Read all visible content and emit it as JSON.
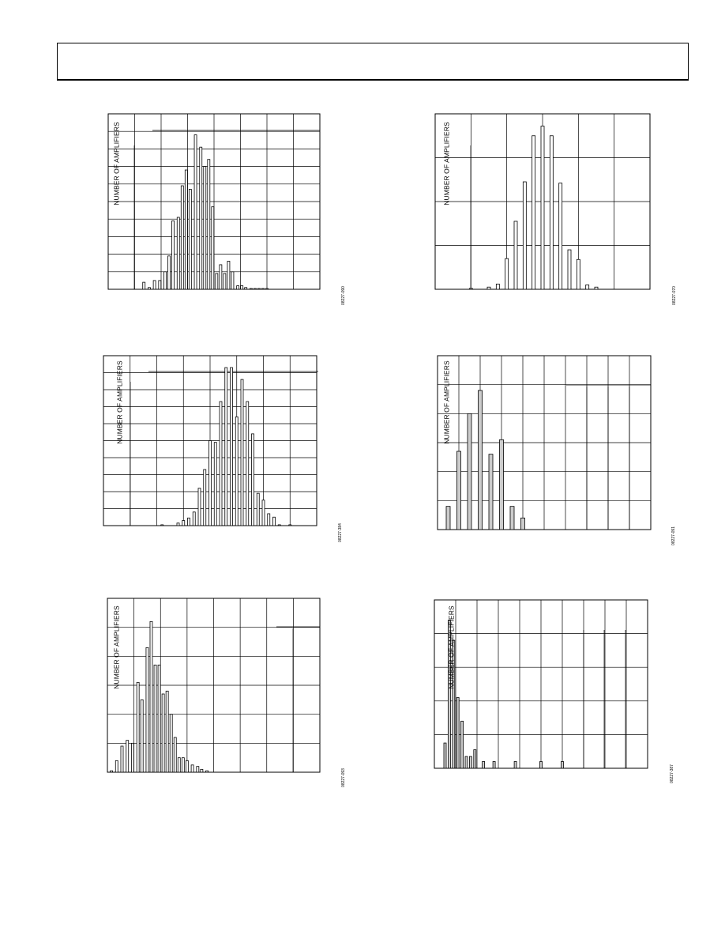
{
  "header": {
    "text": ""
  },
  "charts": [
    {
      "ylabel": "NUMBER OF AMPLIFIERS",
      "fig_id": "08227-090"
    },
    {
      "ylabel": "NUMBER OF AMPLIFIERS",
      "fig_id": "08227-070"
    },
    {
      "ylabel": "NUMBER OF AMPLIFIERS",
      "fig_id": "08227-384"
    },
    {
      "ylabel": "NUMBER OF AMPLIFIERS",
      "fig_id": "08227-091"
    },
    {
      "ylabel": "NUMBER OF AMPLIFIERS",
      "fig_id": "08227-093"
    },
    {
      "ylabel": "NUMBER OF AMPLIFIERS",
      "fig_id": "08227-387"
    }
  ],
  "chart_data": [
    {
      "type": "bar",
      "ylabel": "NUMBER OF AMPLIFIERS",
      "xlim": [
        0,
        8
      ],
      "ylim": [
        0,
        10
      ],
      "grid": {
        "x_divisions": 8,
        "y_divisions": 10
      },
      "bar_color": "#ffffff",
      "x": [
        1.35,
        1.55,
        1.75,
        1.95,
        2.15,
        2.3,
        2.45,
        2.65,
        2.8,
        2.95,
        3.1,
        3.3,
        3.5,
        3.65,
        3.8,
        3.95,
        4.1,
        4.25,
        4.4,
        4.55,
        4.7,
        4.9,
        5.05,
        5.2,
        5.4,
        5.55,
        5.7,
        5.85,
        6.0
      ],
      "values": [
        0.4,
        0.1,
        0.5,
        0.5,
        1.0,
        1.9,
        3.9,
        4.1,
        5.9,
        6.8,
        5.7,
        8.8,
        8.1,
        7.0,
        7.4,
        4.7,
        0.9,
        1.4,
        0.9,
        1.6,
        1.0,
        0.2,
        0.2,
        0.1,
        0.0,
        0.0,
        0.0,
        0.0,
        0.0
      ]
    },
    {
      "type": "bar",
      "ylabel": "NUMBER OF AMPLIFIERS",
      "xlim": [
        0,
        6
      ],
      "ylim": [
        0,
        4
      ],
      "grid": {
        "x_divisions": 6,
        "y_divisions": 4
      },
      "bar_color": "#ffffff",
      "x": [
        1.0,
        1.5,
        1.75,
        2.0,
        2.25,
        2.5,
        2.75,
        3.0,
        3.25,
        3.5,
        3.75,
        4.0,
        4.25,
        4.5
      ],
      "values": [
        0.02,
        0.05,
        0.12,
        0.7,
        1.55,
        2.45,
        3.5,
        3.72,
        3.5,
        2.42,
        0.9,
        0.68,
        0.1,
        0.05
      ]
    },
    {
      "type": "bar",
      "ylabel": "NUMBER OF AMPLIFIERS",
      "xlim": [
        0,
        8
      ],
      "ylim": [
        0,
        10
      ],
      "grid": {
        "x_divisions": 8,
        "y_divisions": 10
      },
      "bar_color": "#ffffff",
      "x": [
        2.2,
        2.8,
        3.0,
        3.2,
        3.4,
        3.6,
        3.8,
        4.0,
        4.2,
        4.4,
        4.6,
        4.8,
        5.0,
        5.2,
        5.4,
        5.6,
        5.8,
        6.0,
        6.2,
        6.4,
        6.6,
        7.0
      ],
      "values": [
        0.05,
        0.15,
        0.3,
        0.45,
        0.8,
        2.2,
        3.3,
        5.0,
        4.9,
        7.3,
        9.3,
        9.3,
        6.4,
        8.6,
        7.3,
        5.4,
        1.9,
        1.5,
        0.7,
        0.5,
        0.05,
        0.05
      ]
    },
    {
      "type": "bar",
      "ylabel": "NUMBER OF AMPLIFIERS",
      "xlim": [
        0,
        10
      ],
      "ylim": [
        0,
        6
      ],
      "grid": {
        "x_divisions": 10,
        "y_divisions": 6
      },
      "bar_color": "#cccccc",
      "x": [
        0.5,
        1.0,
        1.5,
        2.0,
        2.5,
        3.0,
        3.5,
        4.0
      ],
      "values": [
        0.8,
        2.7,
        4.0,
        4.8,
        2.6,
        3.1,
        0.8,
        0.4
      ]
    },
    {
      "type": "bar",
      "ylabel": "NUMBER OF AMPLIFIERS",
      "xlim": [
        0,
        8
      ],
      "ylim": [
        0,
        6
      ],
      "grid": {
        "x_divisions": 8,
        "y_divisions": 6
      },
      "bar_color": "#ffffff",
      "x": [
        0.15,
        0.35,
        0.55,
        0.75,
        0.95,
        1.15,
        1.3,
        1.5,
        1.65,
        1.8,
        1.95,
        2.1,
        2.25,
        2.4,
        2.55,
        2.7,
        2.85,
        3.0,
        3.2,
        3.4,
        3.55,
        3.75
      ],
      "values": [
        0.05,
        0.4,
        0.9,
        1.1,
        1.0,
        3.1,
        2.5,
        4.3,
        5.2,
        3.7,
        3.7,
        2.7,
        2.8,
        2.0,
        1.2,
        0.5,
        0.5,
        0.4,
        0.25,
        0.2,
        0.1,
        0.05
      ]
    },
    {
      "type": "bar",
      "ylabel": "NUMBER OF AMPLIFIERS",
      "xlim": [
        0,
        10
      ],
      "ylim": [
        0,
        5
      ],
      "grid": {
        "x_divisions": 10,
        "y_divisions": 5
      },
      "bar_color": "#cccccc",
      "x": [
        0.5,
        0.7,
        0.9,
        1.1,
        1.3,
        1.5,
        1.7,
        1.9,
        2.3,
        2.8,
        3.8,
        5.0,
        6.0
      ],
      "values": [
        0.75,
        4.4,
        3.8,
        2.1,
        1.4,
        0.35,
        0.35,
        0.55,
        0.2,
        0.2,
        0.2,
        0.2,
        0.2
      ]
    }
  ]
}
